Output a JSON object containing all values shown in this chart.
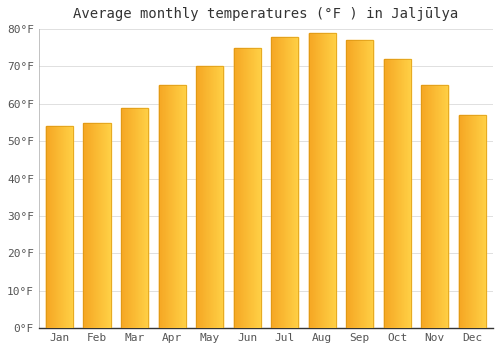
{
  "title": "Average monthly temperatures (°F ) in Jaljūlya",
  "months": [
    "Jan",
    "Feb",
    "Mar",
    "Apr",
    "May",
    "Jun",
    "Jul",
    "Aug",
    "Sep",
    "Oct",
    "Nov",
    "Dec"
  ],
  "values": [
    54,
    55,
    59,
    65,
    70,
    75,
    78,
    79,
    77,
    72,
    65,
    57
  ],
  "bar_color_left": "#F5A623",
  "bar_color_right": "#FFD045",
  "ylim": [
    0,
    80
  ],
  "yticks": [
    0,
    10,
    20,
    30,
    40,
    50,
    60,
    70,
    80
  ],
  "ytick_labels": [
    "0°F",
    "10°F",
    "20°F",
    "30°F",
    "40°F",
    "50°F",
    "60°F",
    "70°F",
    "80°F"
  ],
  "background_color": "#ffffff",
  "grid_color": "#e0e0e0",
  "title_fontsize": 10,
  "tick_fontsize": 8,
  "axis_color": "#555555"
}
